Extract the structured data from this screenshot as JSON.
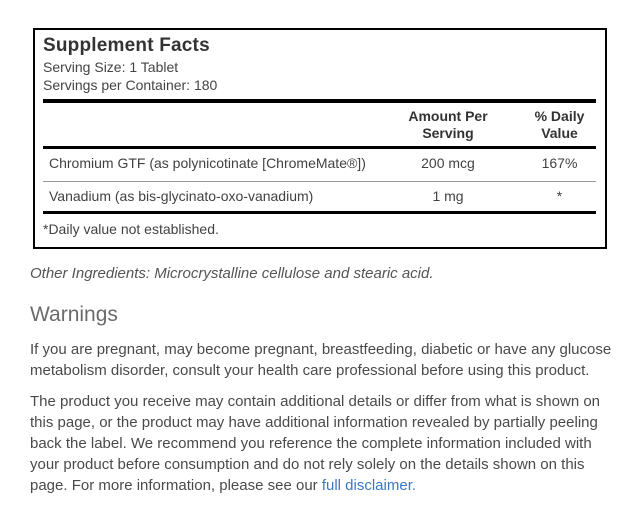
{
  "supplement_facts": {
    "title": "Supplement Facts",
    "serving_size": "Serving Size: 1 Tablet",
    "servings_per_container": "Servings per Container: 180",
    "columns": {
      "amount_header": "Amount Per Serving",
      "daily_value_header": "% Daily Value"
    },
    "rows": [
      {
        "name": "Chromium GTF (as polynicotinate [ChromeMate®])",
        "amount": "200 mcg",
        "daily_value": "167%"
      },
      {
        "name": "Vanadium (as bis-glycinato-oxo-vanadium)",
        "amount": "1 mg",
        "daily_value": "*"
      }
    ],
    "footnote": "*Daily value not established."
  },
  "other_ingredients": "Other Ingredients: Microcrystalline cellulose and stearic acid.",
  "warnings": {
    "heading": "Warnings",
    "paragraphs": [
      "If you are pregnant, may become pregnant, breastfeeding, diabetic or have any glucose metabolism disorder, consult your health care professional before using this product."
    ],
    "disclaimer_before_link": "The product you receive may contain additional details or differ from what is shown on this page, or the product may have additional information revealed by partially peeling back the label. We recommend you reference the complete information included with your product before consumption and do not rely solely on the details shown on this page. For more information, please see our ",
    "disclaimer_link": "full disclaimer",
    "disclaimer_suffix": "."
  },
  "colors": {
    "link": "#3b78c4",
    "panel_border": "#000000",
    "thin_divider": "#999999",
    "title_text": "#333333",
    "body_text": "#4a4a4a",
    "warnings_heading_text": "#6b6b6b"
  }
}
